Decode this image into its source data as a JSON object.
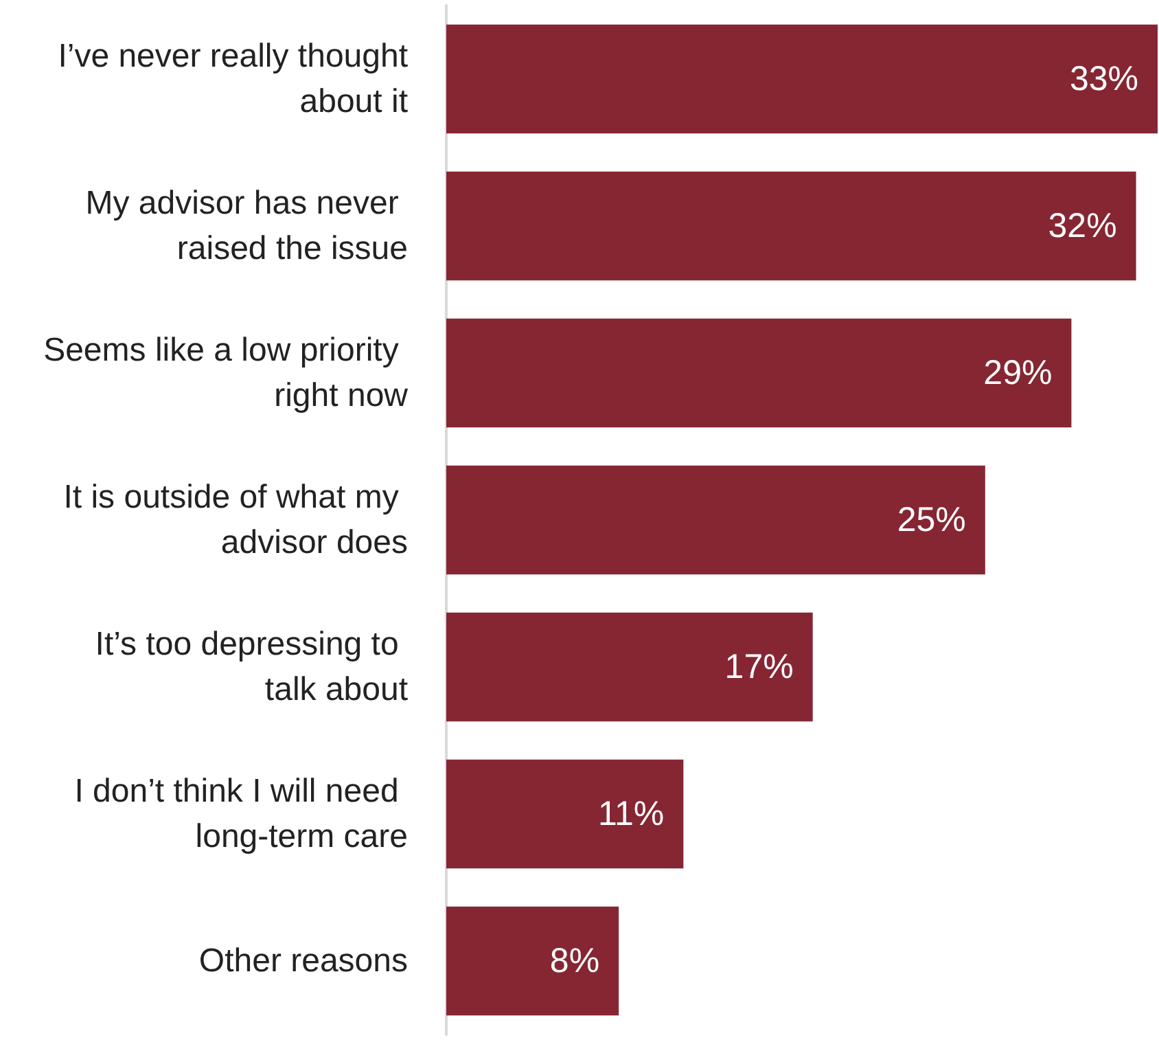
{
  "chart_data": {
    "type": "bar",
    "orientation": "horizontal",
    "categories": [
      "I’ve never really thought about it",
      "My advisor has never raised the issue",
      "Seems like a low priority right now",
      "It is outside of what my advisor does",
      "It’s too depressing to talk about",
      "I don’t think I will need long-term care",
      "Other reasons"
    ],
    "values": [
      33,
      32,
      29,
      25,
      17,
      11,
      8
    ],
    "color": "#862633",
    "value_labels": [
      "33%",
      "32%",
      "29%",
      "25%",
      "17%",
      "11%",
      "8%"
    ]
  }
}
